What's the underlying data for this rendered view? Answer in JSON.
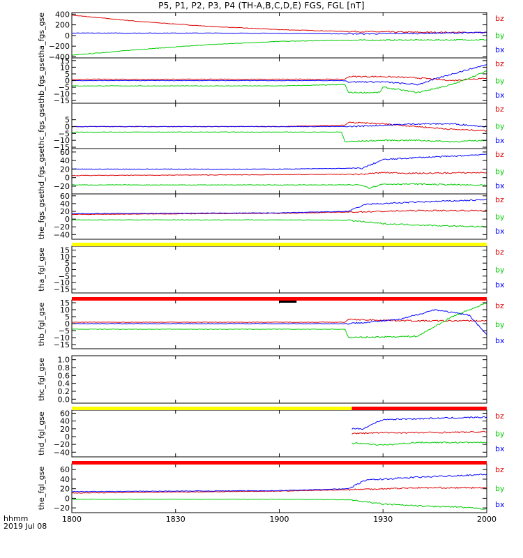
{
  "title": "P5, P1, P2, P3, P4 (TH-A,B,C,D,E) FGS, FGL [nT]",
  "time_axis": {
    "label_line1": "hhmm",
    "label_line2": "2019 Jul 08"
  },
  "colors": {
    "bx": "#0000ff",
    "by": "#00cc00",
    "bz": "#dd0000",
    "bar_yellow": "#ffff00",
    "bar_red": "#ff0000",
    "bar_black": "#000000"
  },
  "chart_data": [
    {
      "type": "line",
      "ylabel": "tha_fgs_gse",
      "ylim": [
        -420,
        430
      ],
      "yticks": [
        400,
        200,
        0,
        -200,
        -400
      ],
      "ytick_labels": [
        "400",
        "200",
        "0",
        "−200",
        "−400"
      ],
      "xlim": [
        "18:00",
        "20:00"
      ],
      "legend": [
        "bz",
        "by",
        "bx"
      ],
      "series": [
        {
          "name": "bz",
          "color": "#dd0000",
          "x": [
            "18:00",
            "18:20",
            "18:40",
            "19:00",
            "19:20",
            "19:40",
            "20:00"
          ],
          "values": [
            380,
            260,
            170,
            110,
            75,
            60,
            55
          ]
        },
        {
          "name": "by",
          "color": "#00cc00",
          "x": [
            "18:00",
            "18:20",
            "18:40",
            "19:00",
            "19:20",
            "19:40",
            "20:00"
          ],
          "values": [
            -370,
            -260,
            -170,
            -110,
            -90,
            -85,
            -80
          ]
        },
        {
          "name": "bx",
          "color": "#0000ff",
          "x": [
            "18:00",
            "18:40",
            "19:00",
            "19:20",
            "19:40",
            "20:00"
          ],
          "values": [
            45,
            45,
            40,
            30,
            40,
            55
          ]
        }
      ]
    },
    {
      "type": "line",
      "ylabel": "thb_fgs_gse",
      "ylim": [
        -17,
        17
      ],
      "yticks": [
        15,
        10,
        5,
        0,
        -5,
        -10,
        -15
      ],
      "ytick_labels": [
        "15",
        "10",
        "5",
        "0",
        "−5",
        "−10",
        "−15"
      ],
      "xlim": [
        "18:00",
        "20:00"
      ],
      "legend": [
        "bz",
        "by",
        "bx"
      ],
      "series": [
        {
          "name": "bz",
          "color": "#dd0000",
          "x": [
            "18:00",
            "19:00",
            "19:19",
            "19:20",
            "19:30",
            "19:40",
            "19:50",
            "20:00"
          ],
          "values": [
            1,
            1,
            1,
            3,
            3,
            2,
            0,
            2
          ]
        },
        {
          "name": "by",
          "color": "#00cc00",
          "x": [
            "18:00",
            "19:00",
            "19:19",
            "19:20",
            "19:29",
            "19:30",
            "19:40",
            "19:50",
            "20:00"
          ],
          "values": [
            -4,
            -4,
            -3,
            -9,
            -9,
            -5,
            -9,
            -3,
            7
          ]
        },
        {
          "name": "bx",
          "color": "#0000ff",
          "x": [
            "18:00",
            "19:00",
            "19:19",
            "19:20",
            "19:30",
            "19:40",
            "19:50",
            "20:00"
          ],
          "values": [
            0,
            0,
            0,
            -1,
            -1,
            -3,
            5,
            12
          ]
        }
      ]
    },
    {
      "type": "line",
      "ylabel": "thc_fgs_gse",
      "ylim": [
        -16,
        17
      ],
      "yticks": [
        5,
        0,
        -5,
        -10,
        -15
      ],
      "ytick_labels": [
        "5",
        "0",
        "−5",
        "−10",
        "−15"
      ],
      "xlim": [
        "18:00",
        "20:00"
      ],
      "legend": [
        "bz",
        "by",
        "bx"
      ],
      "series": [
        {
          "name": "bz",
          "color": "#dd0000",
          "x": [
            "18:00",
            "19:00",
            "19:19",
            "19:20",
            "19:30",
            "19:40",
            "19:50",
            "20:00"
          ],
          "values": [
            0,
            0,
            1,
            3,
            2,
            0,
            -2,
            -3
          ]
        },
        {
          "name": "by",
          "color": "#00cc00",
          "x": [
            "18:00",
            "18:40",
            "19:00",
            "19:18",
            "19:19",
            "19:30",
            "19:40",
            "19:50",
            "20:00"
          ],
          "values": [
            -4,
            -4,
            -4,
            -4,
            -11,
            -10,
            -10,
            -11,
            -10
          ]
        },
        {
          "name": "bx",
          "color": "#0000ff",
          "x": [
            "18:00",
            "19:00",
            "19:20",
            "19:30",
            "19:40",
            "19:50",
            "20:00"
          ],
          "values": [
            0,
            0,
            0,
            1,
            2,
            2,
            0
          ]
        }
      ]
    },
    {
      "type": "line",
      "ylabel": "thd_fgs_gse",
      "ylim": [
        -38,
        68
      ],
      "yticks": [
        60,
        40,
        20,
        0,
        -20
      ],
      "ytick_labels": [
        "60",
        "40",
        "20",
        "0",
        "−20"
      ],
      "xlim": [
        "18:00",
        "20:00"
      ],
      "legend": [
        "bz",
        "by",
        "bx"
      ],
      "series": [
        {
          "name": "bz",
          "color": "#dd0000",
          "x": [
            "18:00",
            "19:00",
            "19:24",
            "19:30",
            "19:40",
            "20:00"
          ],
          "values": [
            5,
            7,
            8,
            12,
            10,
            12
          ]
        },
        {
          "name": "by",
          "color": "#00cc00",
          "x": [
            "18:00",
            "19:00",
            "19:24",
            "19:26",
            "19:30",
            "19:40",
            "20:00"
          ],
          "values": [
            -17,
            -17,
            -17,
            -24,
            -15,
            -15,
            -18
          ]
        },
        {
          "name": "bx",
          "color": "#0000ff",
          "x": [
            "18:00",
            "19:00",
            "19:24",
            "19:30",
            "19:40",
            "19:50",
            "20:00"
          ],
          "values": [
            20,
            20,
            22,
            42,
            47,
            50,
            55
          ]
        }
      ]
    },
    {
      "type": "line",
      "ylabel": "the_fgs_gse",
      "ylim": [
        -52,
        65
      ],
      "yticks": [
        60,
        40,
        20,
        0,
        -20,
        -40
      ],
      "ytick_labels": [
        "60",
        "40",
        "20",
        "0",
        "−20",
        "−40"
      ],
      "xlim": [
        "18:00",
        "20:00"
      ],
      "legend": [
        "bz",
        "by",
        "bx"
      ],
      "series": [
        {
          "name": "bz",
          "color": "#dd0000",
          "x": [
            "18:00",
            "19:00",
            "19:20",
            "19:30",
            "19:40",
            "20:00"
          ],
          "values": [
            12,
            15,
            18,
            20,
            22,
            22
          ]
        },
        {
          "name": "by",
          "color": "#00cc00",
          "x": [
            "18:00",
            "19:00",
            "19:20",
            "19:30",
            "19:40",
            "19:50",
            "20:00"
          ],
          "values": [
            -2,
            -2,
            -3,
            -12,
            -15,
            -18,
            -20
          ]
        },
        {
          "name": "bx",
          "color": "#0000ff",
          "x": [
            "18:00",
            "19:00",
            "19:20",
            "19:25",
            "19:40",
            "20:00"
          ],
          "values": [
            14,
            16,
            20,
            38,
            44,
            50
          ]
        }
      ]
    },
    {
      "type": "line",
      "ylabel": "tha_fgl_gse",
      "ylim": [
        -18,
        18
      ],
      "yticks": [
        15,
        10,
        5,
        0,
        -5,
        -10,
        -15
      ],
      "ytick_labels": [
        "15",
        "10",
        "5",
        "0",
        "−5",
        "−10",
        "−15"
      ],
      "xlim": [
        "18:00",
        "20:00"
      ],
      "legend": [
        "bz",
        "by",
        "bx"
      ],
      "series": []
    },
    {
      "type": "line",
      "ylabel": "thb_fgl_gse",
      "ylim": [
        -18,
        17
      ],
      "yticks": [
        15,
        10,
        5,
        0,
        -5,
        -10,
        -15
      ],
      "ytick_labels": [
        "15",
        "10",
        "5",
        "0",
        "−5",
        "−10",
        "−15"
      ],
      "xlim": [
        "18:00",
        "20:00"
      ],
      "legend": [
        "bz",
        "by",
        "bx"
      ],
      "series": [
        {
          "name": "bz",
          "color": "#dd0000",
          "x": [
            "18:00",
            "19:00",
            "19:19",
            "19:20",
            "19:40",
            "19:50",
            "20:00"
          ],
          "values": [
            1,
            1,
            1,
            3,
            2,
            2,
            2
          ]
        },
        {
          "name": "by",
          "color": "#00cc00",
          "x": [
            "18:00",
            "19:00",
            "19:19",
            "19:20",
            "19:40",
            "19:50",
            "20:00"
          ],
          "values": [
            -4,
            -4,
            -4,
            -10,
            -9,
            5,
            15
          ]
        },
        {
          "name": "bx",
          "color": "#0000ff",
          "x": [
            "18:00",
            "19:00",
            "19:20",
            "19:35",
            "19:45",
            "19:55",
            "20:00"
          ],
          "values": [
            0,
            0,
            0,
            3,
            10,
            6,
            -8
          ]
        }
      ]
    },
    {
      "type": "line",
      "ylabel": "thc_fgl_gse",
      "ylim": [
        -0.1,
        1.1
      ],
      "yticks": [
        1.0,
        0.8,
        0.6,
        0.4,
        0.2,
        0.0
      ],
      "ytick_labels": [
        "1.0",
        "0.8",
        "0.6",
        "0.4",
        "0.2",
        "0.0"
      ],
      "xlim": [
        "18:00",
        "20:00"
      ],
      "series": []
    },
    {
      "type": "line",
      "ylabel": "thd_fgl_gse",
      "ylim": [
        -52,
        68
      ],
      "yticks": [
        60,
        40,
        20,
        0,
        -20,
        -40
      ],
      "ytick_labels": [
        "60",
        "40",
        "20",
        "0",
        "−20",
        "−40"
      ],
      "xlim": [
        "18:00",
        "20:00"
      ],
      "legend": [
        "bz",
        "by",
        "bx"
      ],
      "series": [
        {
          "name": "bz",
          "color": "#dd0000",
          "x": [
            "19:21",
            "19:30",
            "19:40",
            "20:00"
          ],
          "values": [
            8,
            10,
            10,
            12
          ]
        },
        {
          "name": "by",
          "color": "#00cc00",
          "x": [
            "19:21",
            "19:24",
            "19:30",
            "19:40",
            "20:00"
          ],
          "values": [
            -17,
            -17,
            -22,
            -15,
            -15
          ]
        },
        {
          "name": "bx",
          "color": "#0000ff",
          "x": [
            "19:21",
            "19:24",
            "19:30",
            "19:40",
            "20:00"
          ],
          "values": [
            20,
            20,
            44,
            46,
            50
          ]
        }
      ]
    },
    {
      "type": "line",
      "ylabel": "the_fgl_gse",
      "ylim": [
        -30,
        72
      ],
      "yticks": [
        60,
        40,
        20,
        0,
        -20
      ],
      "ytick_labels": [
        "60",
        "40",
        "20",
        "0",
        "−20"
      ],
      "xlim": [
        "18:00",
        "20:00"
      ],
      "legend": [
        "bz",
        "by",
        "bx"
      ],
      "series": [
        {
          "name": "bz",
          "color": "#dd0000",
          "x": [
            "18:00",
            "19:00",
            "19:20",
            "19:30",
            "19:40",
            "20:00"
          ],
          "values": [
            11,
            15,
            18,
            20,
            22,
            22
          ]
        },
        {
          "name": "by",
          "color": "#00cc00",
          "x": [
            "18:00",
            "19:00",
            "19:20",
            "19:30",
            "19:40",
            "19:50",
            "20:00"
          ],
          "values": [
            -2,
            -2,
            -3,
            -12,
            -16,
            -18,
            -22
          ]
        },
        {
          "name": "bx",
          "color": "#0000ff",
          "x": [
            "18:00",
            "19:00",
            "19:20",
            "19:25",
            "19:40",
            "20:00"
          ],
          "values": [
            14,
            16,
            20,
            38,
            44,
            50
          ]
        }
      ]
    }
  ],
  "mode_bars": [
    {
      "after_panel": 4,
      "segments": [
        {
          "color": "#ffff00",
          "from": "18:00",
          "to": "20:00"
        }
      ]
    },
    {
      "after_panel": 5,
      "segments": [
        {
          "color": "#ff0000",
          "from": "18:00",
          "to": "20:00"
        },
        {
          "color": "#000000",
          "from": "19:00",
          "to": "19:05"
        }
      ]
    },
    {
      "after_panel": 7,
      "segments": [
        {
          "color": "#ffff00",
          "from": "18:00",
          "to": "19:21"
        },
        {
          "color": "#ff0000",
          "from": "19:21",
          "to": "20:00"
        }
      ]
    },
    {
      "after_panel": 8,
      "segments": [
        {
          "color": "#ff0000",
          "from": "18:00",
          "to": "20:00"
        }
      ]
    }
  ],
  "x_ticks": {
    "values": [
      "18:00",
      "18:30",
      "19:00",
      "19:30",
      "20:00"
    ],
    "labels": [
      "1800",
      "1830",
      "1900",
      "1930",
      "2000"
    ]
  }
}
